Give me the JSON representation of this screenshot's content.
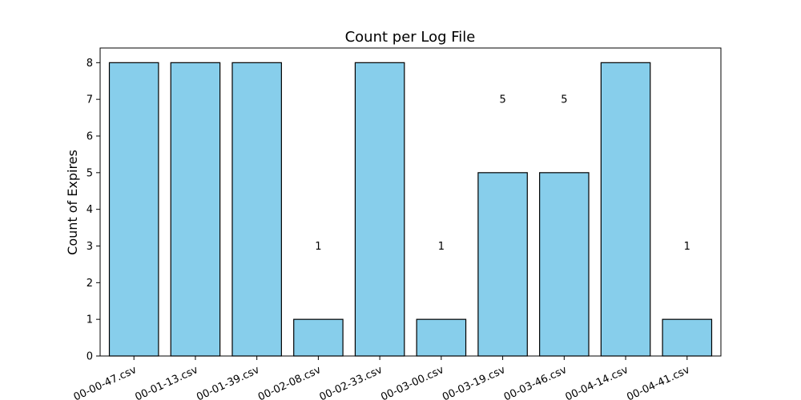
{
  "chart_data": {
    "type": "bar",
    "title": "Count per Log File",
    "xlabel": "",
    "ylabel": "Count of Expires",
    "ylim": [
      0,
      8.4
    ],
    "yticks": [
      0,
      1,
      2,
      3,
      4,
      5,
      6,
      7,
      8
    ],
    "categories": [
      "00-00-47.csv",
      "00-01-13.csv",
      "00-01-39.csv",
      "00-02-08.csv",
      "00-02-33.csv",
      "00-03-00.csv",
      "00-03-19.csv",
      "00-03-46.csv",
      "00-04-14.csv",
      "00-04-41.csv"
    ],
    "values": [
      8,
      8,
      8,
      1,
      8,
      1,
      5,
      5,
      8,
      1
    ],
    "data_labels": [
      {
        "category_index": 3,
        "text": "1",
        "y": 3
      },
      {
        "category_index": 5,
        "text": "1",
        "y": 3
      },
      {
        "category_index": 6,
        "text": "5",
        "y": 7
      },
      {
        "category_index": 7,
        "text": "5",
        "y": 7
      },
      {
        "category_index": 9,
        "text": "1",
        "y": 3
      }
    ],
    "colors": {
      "bar": "#87ceeb",
      "edge": "#000000"
    },
    "grid": false
  }
}
